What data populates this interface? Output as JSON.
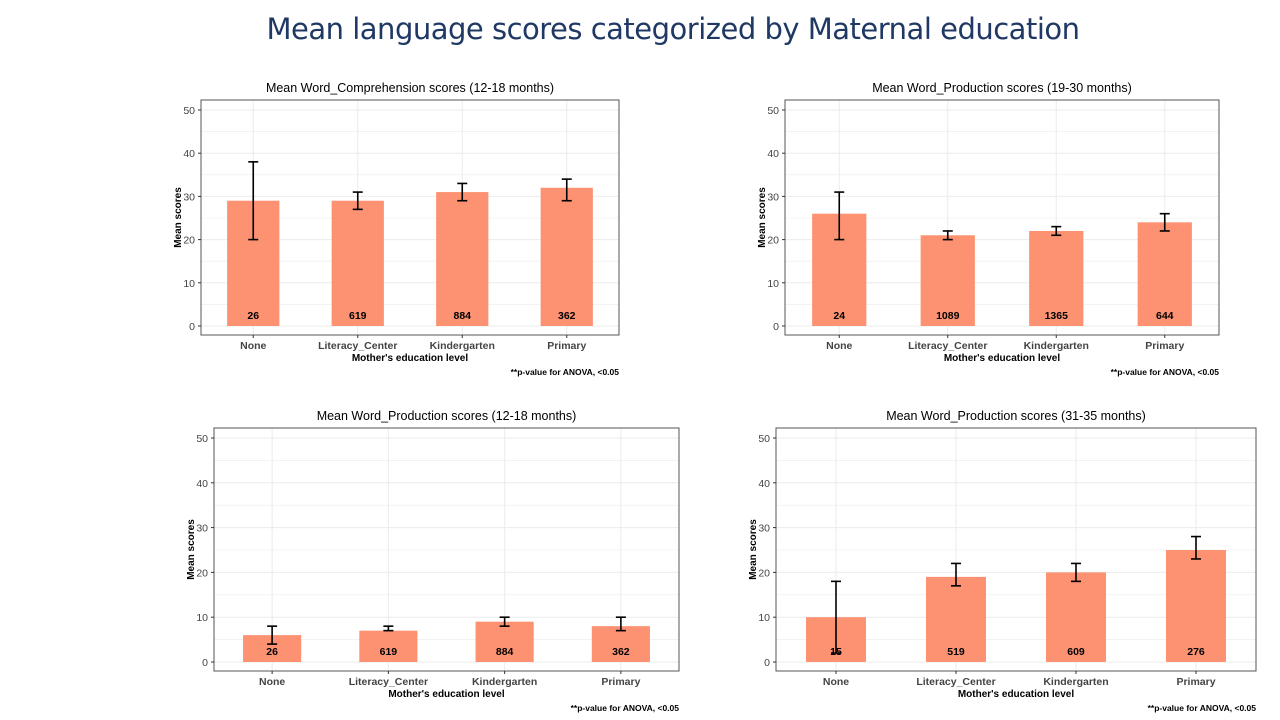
{
  "slide": {
    "title": "Mean language scores categorized by Maternal education"
  },
  "style": {
    "bar_color": "#fc9272",
    "grid_color": "#ebebeb",
    "title_color": "#1f3864"
  },
  "chart_data": [
    {
      "type": "bar",
      "title": "Mean Word_Comprehension scores (12-18 months)",
      "xlabel": "Mother's education level",
      "ylabel": "Mean scores",
      "note": "**p-value  for ANOVA,  <0.05",
      "ylim": [
        0,
        50
      ],
      "yticks": [
        0,
        10,
        20,
        30,
        40,
        50
      ],
      "categories": [
        "None",
        "Literacy_Center",
        "Kindergarten",
        "Primary"
      ],
      "values": [
        29,
        29,
        31,
        32
      ],
      "err_low": [
        20,
        27,
        29,
        29
      ],
      "err_high": [
        38,
        31,
        33,
        34
      ],
      "n_labels": [
        "26",
        "619",
        "884",
        "362"
      ],
      "grid": true
    },
    {
      "type": "bar",
      "title": "Mean Word_Production scores (19-30 months)",
      "xlabel": "Mother's education level",
      "ylabel": "Mean scores",
      "note": "**p-value  for ANOVA,  <0.05",
      "ylim": [
        0,
        50
      ],
      "yticks": [
        0,
        10,
        20,
        30,
        40,
        50
      ],
      "categories": [
        "None",
        "Literacy_Center",
        "Kindergarten",
        "Primary"
      ],
      "values": [
        26,
        21,
        22,
        24
      ],
      "err_low": [
        20,
        20,
        21,
        22
      ],
      "err_high": [
        31,
        22,
        23,
        26
      ],
      "n_labels": [
        "24",
        "1089",
        "1365",
        "644"
      ],
      "grid": true
    },
    {
      "type": "bar",
      "title": "Mean Word_Production scores (12-18 months)",
      "xlabel": "Mother's education level",
      "ylabel": "Mean scores",
      "note": "**p-value  for ANOVA,  <0.05",
      "ylim": [
        0,
        50
      ],
      "yticks": [
        0,
        10,
        20,
        30,
        40,
        50
      ],
      "categories": [
        "None",
        "Literacy_Center",
        "Kindergarten",
        "Primary"
      ],
      "values": [
        6,
        7,
        9,
        8
      ],
      "err_low": [
        4,
        7,
        8,
        7
      ],
      "err_high": [
        8,
        8,
        10,
        10
      ],
      "n_labels": [
        "26",
        "619",
        "884",
        "362"
      ],
      "grid": true
    },
    {
      "type": "bar",
      "title": "Mean Word_Production scores (31-35 months)",
      "xlabel": "Mother's education level",
      "ylabel": "Mean scores",
      "note": "**p-value  for ANOVA,  <0.05",
      "ylim": [
        0,
        50
      ],
      "yticks": [
        0,
        10,
        20,
        30,
        40,
        50
      ],
      "categories": [
        "None",
        "Literacy_Center",
        "Kindergarten",
        "Primary"
      ],
      "values": [
        10,
        19,
        20,
        25
      ],
      "err_low": [
        2,
        17,
        18,
        23
      ],
      "err_high": [
        18,
        22,
        22,
        28
      ],
      "n_labels": [
        "15",
        "519",
        "609",
        "276"
      ],
      "grid": true
    }
  ]
}
